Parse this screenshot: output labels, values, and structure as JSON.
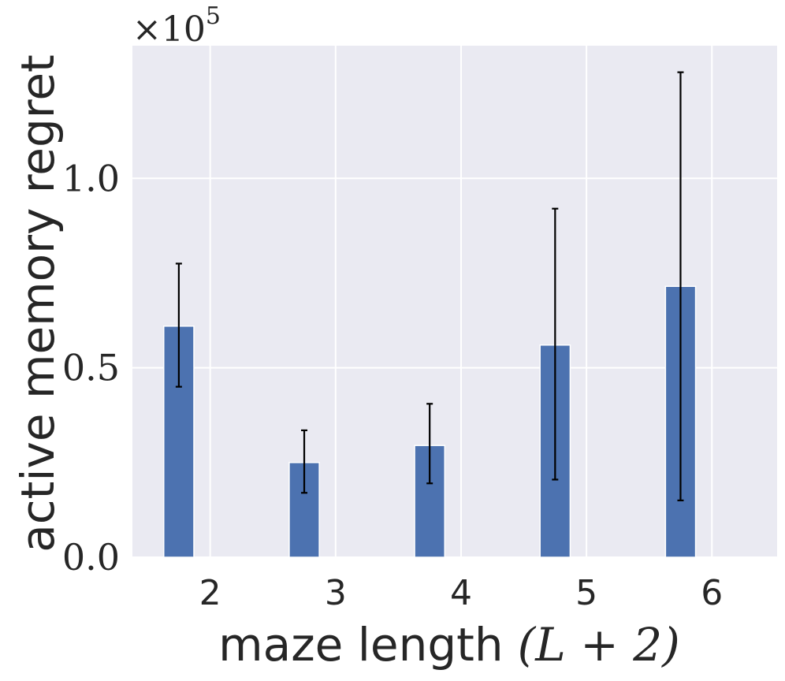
{
  "chart_data": {
    "type": "bar",
    "categories": [
      "2",
      "3",
      "4",
      "5",
      "6"
    ],
    "values": [
      61000,
      25000,
      29500,
      56000,
      71500
    ],
    "error_low": [
      45000,
      17000,
      19500,
      20500,
      15000
    ],
    "error_high": [
      77500,
      33500,
      40500,
      92000,
      128000
    ],
    "xlabel": "maze length",
    "xlabel_math": "(L + 2)",
    "ylabel": "active memory regret",
    "y_multiplier_base": "×10",
    "y_multiplier_exp": "5",
    "yticks": [
      0,
      50000,
      100000
    ],
    "ytick_labels": [
      "0.0",
      "0.5",
      "1.0"
    ],
    "ylim": [
      0,
      135000
    ],
    "grid": true,
    "colors": {
      "bar": "#4c72b0",
      "background": "#eaeaf2",
      "grid": "#ffffff",
      "error": "#000000"
    }
  }
}
